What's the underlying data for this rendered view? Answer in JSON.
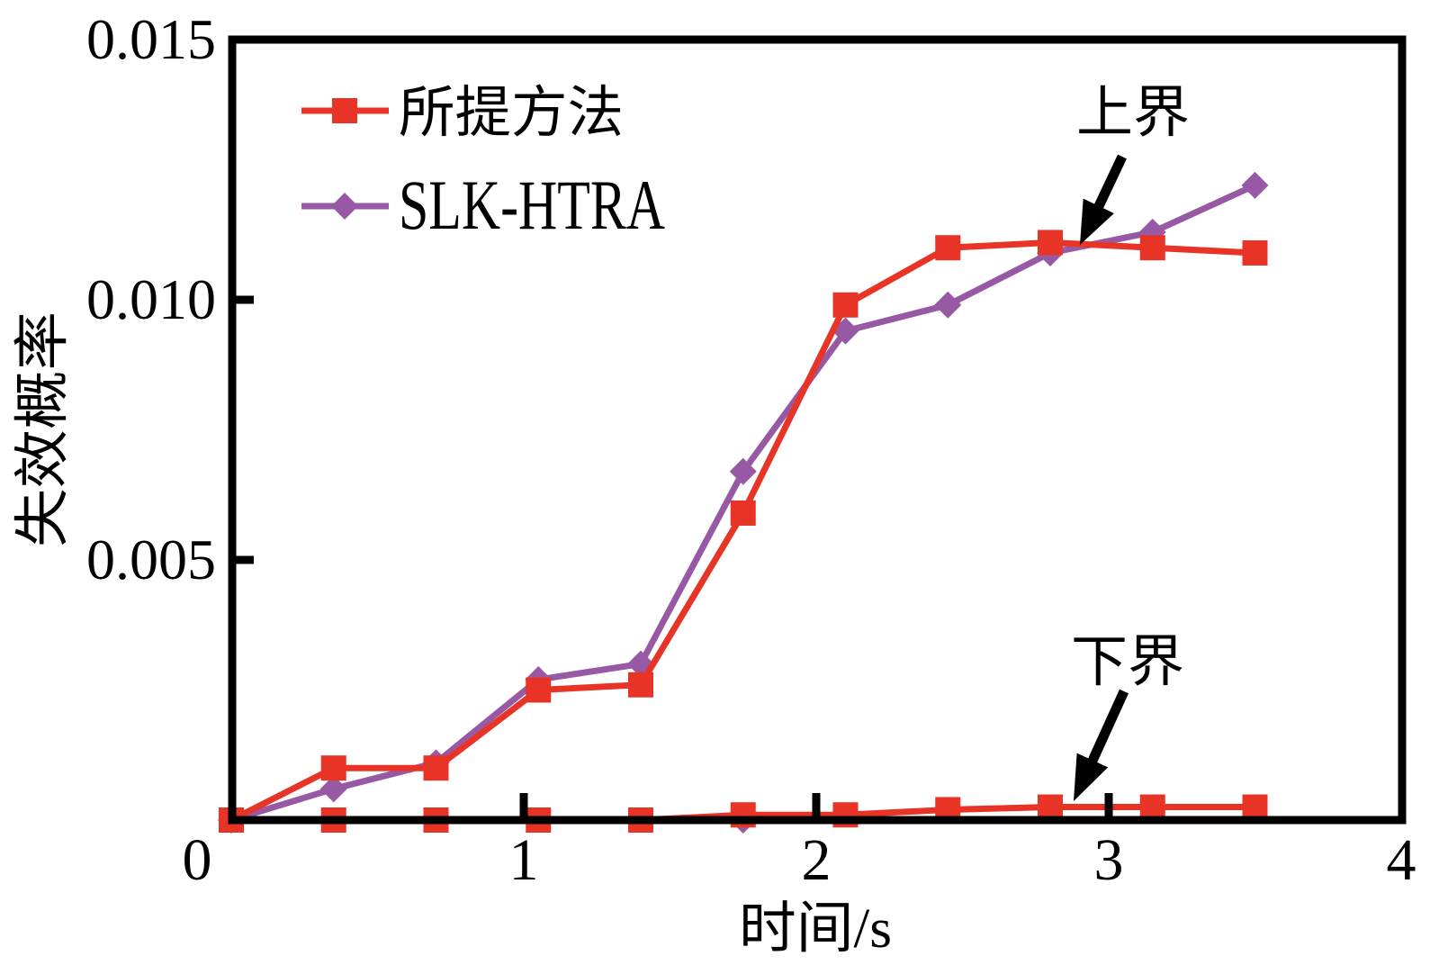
{
  "figure": {
    "background": "#ffffff"
  },
  "colors": {
    "proposed": "#e83426",
    "slk": "#9859a4",
    "axis": "#000000",
    "text": "#000000"
  },
  "axes": {
    "x": {
      "label": "时间/s",
      "range": [
        0,
        4
      ],
      "ticks": [
        {
          "label": "0",
          "value": 0
        },
        {
          "label": "1",
          "value": 1
        },
        {
          "label": "2",
          "value": 2
        },
        {
          "label": "3",
          "value": 3
        },
        {
          "label": "4",
          "value": 4
        }
      ]
    },
    "y": {
      "label": "失效概率",
      "range": [
        0,
        0.015
      ],
      "ticks": [
        {
          "label": "0.005",
          "value": 0.005
        },
        {
          "label": "0.010",
          "value": 0.01
        },
        {
          "label": "0.015",
          "value": 0.015
        }
      ]
    }
  },
  "legend": {
    "items": [
      {
        "label": "所提方法",
        "color": "#e83426",
        "marker": "square"
      },
      {
        "label": "SLK-HTRA",
        "color": "#9859a4",
        "marker": "diamond"
      }
    ]
  },
  "annotations": [
    {
      "text": "上界"
    },
    {
      "text": "下界"
    }
  ],
  "chart_data": {
    "type": "line",
    "title": "",
    "xlabel": "时间/s",
    "ylabel": "失效概率",
    "xlim": [
      0,
      4
    ],
    "ylim": [
      0,
      0.015
    ],
    "grid": false,
    "legend_position": "upper-left-inside",
    "x": [
      0,
      0.35,
      0.7,
      1.05,
      1.4,
      1.75,
      2.1,
      2.45,
      2.8,
      3.15,
      3.5
    ],
    "series": [
      {
        "key": "slk-lower",
        "name": "SLK-HTRA 下界",
        "legend": "SLK-HTRA",
        "color": "#9859a4",
        "marker": "diamond",
        "x": [
          1.75
        ],
        "values": [
          0
        ]
      },
      {
        "key": "proposed-lower",
        "name": "所提方法 下界",
        "legend": "所提方法",
        "color": "#e83426",
        "marker": "square",
        "values": [
          0,
          0,
          0,
          0,
          0,
          0.0001,
          0.0001,
          0.0002,
          0.00025,
          0.00025,
          0.00025
        ]
      },
      {
        "key": "slk-upper",
        "name": "SLK-HTRA 上界",
        "legend": "SLK-HTRA",
        "color": "#9859a4",
        "marker": "diamond",
        "values": [
          0,
          0.0006,
          0.0011,
          0.0027,
          0.003,
          0.0067,
          0.0094,
          0.0099,
          0.0109,
          0.0113,
          0.0122
        ]
      },
      {
        "key": "proposed-upper",
        "name": "所提方法 上界",
        "legend": "所提方法",
        "color": "#e83426",
        "marker": "square",
        "values": [
          0,
          0.001,
          0.001,
          0.0025,
          0.0026,
          0.0059,
          0.0099,
          0.011,
          0.0111,
          0.011,
          0.0109
        ]
      }
    ]
  }
}
